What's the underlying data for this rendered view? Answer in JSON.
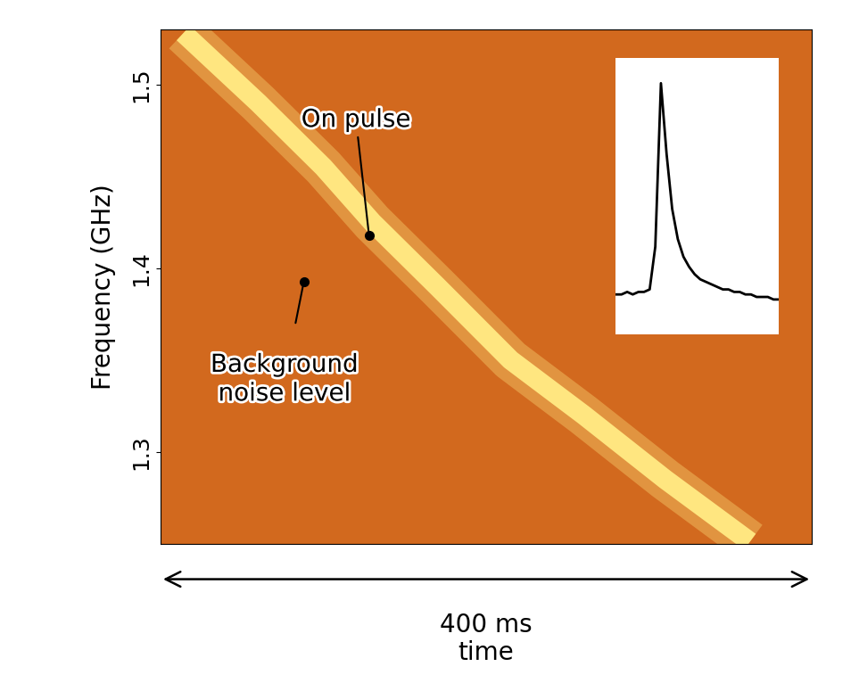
{
  "chart_data": [
    {
      "type": "line",
      "ylabel": "Frequency (GHz)",
      "xlabel": "time",
      "annotations": [
        "On pulse",
        "Background noise level",
        "400 ms"
      ],
      "x": [
        14,
        60,
        100,
        130,
        170,
        215,
        260,
        310,
        362
      ],
      "series": [
        {
          "name": "On pulse",
          "color": "#ffe680",
          "values": [
            1.528,
            1.49,
            1.455,
            1.425,
            1.39,
            1.35,
            1.32,
            1.285,
            1.251
          ]
        }
      ],
      "xlim": [
        0,
        400
      ],
      "ylim": [
        1.25,
        1.53
      ],
      "yticks": [
        1.3,
        1.4,
        1.5
      ],
      "tick_labels": "y"
    },
    {
      "type": "line",
      "values": [
        0.16,
        0.16,
        0.17,
        0.16,
        0.17,
        0.17,
        0.18,
        0.35,
        1.0,
        0.72,
        0.5,
        0.38,
        0.31,
        0.27,
        0.24,
        0.22,
        0.21,
        0.2,
        0.19,
        0.18,
        0.18,
        0.17,
        0.17,
        0.16,
        0.16,
        0.15,
        0.15,
        0.15,
        0.14,
        0.14
      ],
      "color": "#000000",
      "xlim": [
        0,
        29
      ],
      "ylim": [
        0,
        1.1
      ],
      "tick_labels": false
    }
  ]
}
